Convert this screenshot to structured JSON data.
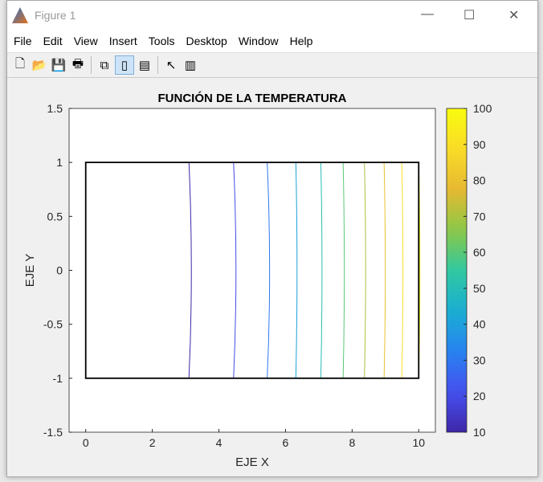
{
  "window": {
    "title": "Figure 1",
    "minimize": "—",
    "maximize": "☐",
    "close": "✕"
  },
  "menu": [
    "File",
    "Edit",
    "View",
    "Insert",
    "Tools",
    "Desktop",
    "Window",
    "Help"
  ],
  "toolbar": [
    {
      "icon": "new-figure-icon",
      "glyph": "🗋"
    },
    {
      "icon": "open-icon",
      "glyph": "📂"
    },
    {
      "icon": "save-icon",
      "glyph": "💾"
    },
    {
      "icon": "print-icon",
      "glyph": "🖶"
    },
    {
      "icon": "link-plot-icon",
      "glyph": "⧉"
    },
    {
      "icon": "colorbar-icon",
      "glyph": "▯",
      "active": true
    },
    {
      "icon": "legend-icon",
      "glyph": "▤"
    },
    {
      "icon": "pointer-icon",
      "glyph": "↖"
    },
    {
      "icon": "property-editor-icon",
      "glyph": "▥"
    }
  ],
  "chart_data": {
    "type": "contour",
    "title": "FUNCIÓN DE LA TEMPERATURA",
    "xlabel": "EJE X",
    "ylabel": "EJE Y",
    "xlim": [
      -0.5,
      10.5
    ],
    "ylim": [
      -1.5,
      1.5
    ],
    "xticks": [
      "0",
      "2",
      "4",
      "6",
      "8",
      "10"
    ],
    "yticks": [
      "1.5",
      "1",
      "0.5",
      "0",
      "-0.5",
      "-1",
      "-1.5"
    ],
    "domain_box": {
      "x": [
        0,
        10
      ],
      "y": [
        -1,
        1
      ]
    },
    "levels": [
      10,
      20,
      30,
      40,
      50,
      60,
      70,
      80,
      90,
      100
    ],
    "contour_x_positions": [
      3.1,
      4.44,
      5.45,
      6.31,
      7.06,
      7.73,
      8.37,
      8.96,
      9.49,
      10.0
    ],
    "colorbar": {
      "range": [
        10,
        100
      ],
      "ticks": [
        "10",
        "20",
        "30",
        "40",
        "50",
        "60",
        "70",
        "80",
        "90",
        "100"
      ],
      "colormap": "parula"
    }
  }
}
